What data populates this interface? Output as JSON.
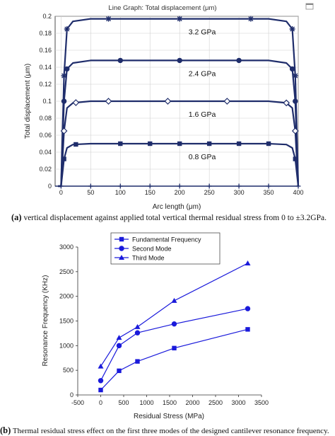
{
  "chart_data": [
    {
      "type": "line",
      "title": "Line Graph: Total displacement (μm)",
      "xlabel": "Arc length (μm)",
      "ylabel": "Total displacement (μm)",
      "xlim": [
        -10,
        400
      ],
      "ylim": [
        0,
        0.2
      ],
      "xticks": [
        "0",
        "50",
        "100",
        "150",
        "200",
        "250",
        "300",
        "350",
        "400"
      ],
      "yticks": [
        "0",
        "0.02",
        "0.04",
        "0.06",
        "0.08",
        "0.1",
        "0.12",
        "0.14",
        "0.16",
        "0.18",
        "0.2"
      ],
      "grid": true,
      "series_color": "#1f2d6b",
      "series": [
        {
          "name": "0.8 GPa",
          "plateau": 0.05,
          "x": [
            -5,
            0,
            5,
            10,
            20,
            50,
            100,
            150,
            200,
            250,
            300,
            350,
            380,
            390,
            395,
            400
          ],
          "y": [
            0,
            0,
            0.032,
            0.045,
            0.049,
            0.05,
            0.05,
            0.05,
            0.05,
            0.05,
            0.05,
            0.05,
            0.049,
            0.045,
            0.032,
            0
          ],
          "marker": "square"
        },
        {
          "name": "1.6 GPa",
          "plateau": 0.1,
          "x": [
            -5,
            0,
            5,
            10,
            20,
            50,
            100,
            150,
            200,
            250,
            300,
            350,
            380,
            390,
            395,
            400
          ],
          "y": [
            0,
            0,
            0.065,
            0.092,
            0.098,
            0.1,
            0.1,
            0.1,
            0.1,
            0.1,
            0.1,
            0.1,
            0.098,
            0.092,
            0.065,
            0
          ],
          "marker": "diamond"
        },
        {
          "name": "2.4 GPa",
          "plateau": 0.148,
          "x": [
            -5,
            0,
            5,
            10,
            20,
            50,
            100,
            150,
            200,
            250,
            300,
            350,
            380,
            390,
            395,
            400
          ],
          "y": [
            0,
            0,
            0.1,
            0.138,
            0.145,
            0.148,
            0.148,
            0.148,
            0.148,
            0.148,
            0.148,
            0.148,
            0.145,
            0.138,
            0.1,
            0
          ],
          "marker": "circle"
        },
        {
          "name": "3.2 GPa",
          "plateau": 0.197,
          "x": [
            -5,
            0,
            5,
            10,
            20,
            50,
            100,
            150,
            200,
            250,
            300,
            350,
            380,
            390,
            395,
            400
          ],
          "y": [
            0,
            0,
            0.13,
            0.185,
            0.194,
            0.197,
            0.197,
            0.197,
            0.197,
            0.197,
            0.197,
            0.197,
            0.194,
            0.185,
            0.13,
            0
          ],
          "marker": "star"
        }
      ],
      "annotations": [
        "3.2 GPa",
        "2.4 GPa",
        "1.6 GPa",
        "0.8 GPa"
      ],
      "caption_tag": "(a)",
      "caption_text": "vertical displacement against applied total vertical thermal residual stress from 0 to ±3.2GPa."
    },
    {
      "type": "line",
      "xlabel": "Residual Stress (MPa)",
      "ylabel": "Resonance Frequency (KHz)",
      "xlim": [
        -500,
        3500
      ],
      "ylim": [
        0,
        3000
      ],
      "xticks": [
        "-500",
        "0",
        "500",
        "1000",
        "1500",
        "2000",
        "2500",
        "3000",
        "3500"
      ],
      "yticks": [
        "0",
        "500",
        "1000",
        "1500",
        "2000",
        "2500",
        "3000"
      ],
      "grid": false,
      "legend_position": "top-left",
      "series_color": "#1a1adb",
      "x": [
        0,
        400,
        800,
        1600,
        3200
      ],
      "series": [
        {
          "name": "Fundamental Frequency",
          "marker": "square",
          "values": [
            100,
            490,
            680,
            950,
            1330
          ]
        },
        {
          "name": "Second Mode",
          "marker": "circle",
          "values": [
            290,
            1000,
            1260,
            1440,
            1750
          ]
        },
        {
          "name": "Third Mode",
          "marker": "triangle",
          "values": [
            580,
            1160,
            1380,
            1910,
            2670
          ]
        }
      ],
      "caption_tag": "(b)",
      "caption_text": "Thermal residual stress effect on the first three modes of the designed cantilever resonance frequency."
    }
  ]
}
